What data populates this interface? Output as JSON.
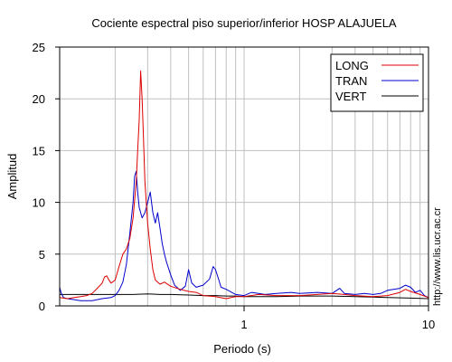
{
  "chart_data": {
    "type": "line",
    "title": "Cociente espectral piso superior/inferior  HOSP ALAJUELA",
    "xlabel": "Periodo (s)",
    "ylabel": "Amplitud",
    "x_scale": "log",
    "xlim": [
      0.1,
      10
    ],
    "ylim": [
      0,
      25
    ],
    "y_ticks": [
      "0",
      "5",
      "10",
      "15",
      "20",
      "25"
    ],
    "x_ticks": [
      {
        "value": 1,
        "label": "1"
      },
      {
        "value": 10,
        "label": "10"
      }
    ],
    "grid": true,
    "legend_position": "top-right",
    "credit": "http://www.lis.ucr.ac.cr",
    "series": [
      {
        "name": "LONG",
        "color": "#dd0000",
        "points": [
          [
            0.1,
            0.8
          ],
          [
            0.11,
            0.7
          ],
          [
            0.12,
            0.8
          ],
          [
            0.13,
            0.9
          ],
          [
            0.14,
            1.0
          ],
          [
            0.15,
            1.2
          ],
          [
            0.16,
            1.7
          ],
          [
            0.17,
            2.2
          ],
          [
            0.175,
            2.8
          ],
          [
            0.18,
            2.9
          ],
          [
            0.185,
            2.5
          ],
          [
            0.19,
            2.2
          ],
          [
            0.2,
            2.5
          ],
          [
            0.21,
            3.8
          ],
          [
            0.22,
            5.0
          ],
          [
            0.23,
            5.5
          ],
          [
            0.24,
            6.5
          ],
          [
            0.25,
            8.5
          ],
          [
            0.26,
            12.0
          ],
          [
            0.265,
            15.0
          ],
          [
            0.27,
            18.0
          ],
          [
            0.275,
            22.7
          ],
          [
            0.28,
            20.0
          ],
          [
            0.285,
            16.0
          ],
          [
            0.29,
            12.0
          ],
          [
            0.3,
            8.0
          ],
          [
            0.31,
            5.5
          ],
          [
            0.32,
            3.5
          ],
          [
            0.33,
            2.5
          ],
          [
            0.35,
            2.1
          ],
          [
            0.37,
            2.3
          ],
          [
            0.4,
            1.9
          ],
          [
            0.45,
            1.6
          ],
          [
            0.5,
            1.4
          ],
          [
            0.55,
            1.3
          ],
          [
            0.6,
            1.0
          ],
          [
            0.7,
            0.9
          ],
          [
            0.8,
            0.7
          ],
          [
            0.9,
            0.9
          ],
          [
            1.0,
            0.9
          ],
          [
            1.2,
            1.1
          ],
          [
            1.5,
            1.0
          ],
          [
            2.0,
            1.0
          ],
          [
            2.5,
            1.1
          ],
          [
            3.0,
            1.2
          ],
          [
            3.5,
            1.1
          ],
          [
            4.0,
            1.0
          ],
          [
            5.0,
            0.9
          ],
          [
            6.0,
            1.0
          ],
          [
            7.0,
            1.3
          ],
          [
            7.5,
            1.6
          ],
          [
            8.0,
            1.4
          ],
          [
            9.0,
            1.1
          ],
          [
            10.0,
            0.8
          ]
        ]
      },
      {
        "name": "TRAN",
        "color": "#0000cc",
        "points": [
          [
            0.1,
            1.8
          ],
          [
            0.102,
            1.2
          ],
          [
            0.105,
            0.8
          ],
          [
            0.11,
            0.7
          ],
          [
            0.12,
            0.6
          ],
          [
            0.13,
            0.5
          ],
          [
            0.15,
            0.5
          ],
          [
            0.17,
            0.7
          ],
          [
            0.19,
            0.8
          ],
          [
            0.2,
            1.0
          ],
          [
            0.21,
            1.5
          ],
          [
            0.22,
            2.3
          ],
          [
            0.23,
            4.0
          ],
          [
            0.24,
            7.0
          ],
          [
            0.25,
            10.0
          ],
          [
            0.255,
            12.5
          ],
          [
            0.26,
            13.0
          ],
          [
            0.265,
            11.0
          ],
          [
            0.27,
            9.5
          ],
          [
            0.28,
            8.5
          ],
          [
            0.29,
            9.0
          ],
          [
            0.3,
            10.0
          ],
          [
            0.31,
            11.0
          ],
          [
            0.32,
            9.0
          ],
          [
            0.33,
            8.0
          ],
          [
            0.34,
            9.0
          ],
          [
            0.35,
            7.5
          ],
          [
            0.36,
            6.0
          ],
          [
            0.37,
            5.0
          ],
          [
            0.38,
            4.2
          ],
          [
            0.4,
            3.0
          ],
          [
            0.42,
            2.0
          ],
          [
            0.45,
            1.5
          ],
          [
            0.48,
            1.9
          ],
          [
            0.5,
            3.5
          ],
          [
            0.52,
            2.2
          ],
          [
            0.55,
            1.8
          ],
          [
            0.6,
            2.0
          ],
          [
            0.65,
            2.6
          ],
          [
            0.68,
            3.8
          ],
          [
            0.7,
            3.5
          ],
          [
            0.73,
            2.5
          ],
          [
            0.75,
            1.8
          ],
          [
            0.8,
            1.6
          ],
          [
            0.9,
            1.1
          ],
          [
            1.0,
            1.0
          ],
          [
            1.1,
            1.3
          ],
          [
            1.3,
            1.1
          ],
          [
            1.5,
            1.2
          ],
          [
            1.8,
            1.3
          ],
          [
            2.0,
            1.2
          ],
          [
            2.5,
            1.3
          ],
          [
            3.0,
            1.2
          ],
          [
            3.3,
            1.7
          ],
          [
            3.5,
            1.2
          ],
          [
            4.0,
            1.1
          ],
          [
            4.5,
            1.2
          ],
          [
            5.0,
            1.1
          ],
          [
            5.5,
            1.2
          ],
          [
            6.0,
            1.5
          ],
          [
            7.0,
            1.7
          ],
          [
            7.5,
            2.0
          ],
          [
            8.0,
            1.8
          ],
          [
            8.5,
            1.3
          ],
          [
            9.0,
            1.5
          ],
          [
            9.5,
            1.0
          ],
          [
            10.0,
            0.8
          ]
        ]
      },
      {
        "name": "VERT",
        "color": "#000000",
        "points": [
          [
            0.1,
            1.1
          ],
          [
            0.15,
            1.1
          ],
          [
            0.2,
            1.1
          ],
          [
            0.25,
            1.1
          ],
          [
            0.3,
            1.15
          ],
          [
            0.35,
            1.1
          ],
          [
            0.4,
            1.1
          ],
          [
            0.5,
            1.05
          ],
          [
            0.6,
            1.0
          ],
          [
            0.7,
            1.0
          ],
          [
            0.8,
            0.95
          ],
          [
            0.9,
            0.95
          ],
          [
            1.0,
            0.9
          ],
          [
            1.5,
            0.9
          ],
          [
            2.0,
            0.95
          ],
          [
            3.0,
            0.95
          ],
          [
            4.0,
            0.9
          ],
          [
            5.0,
            0.85
          ],
          [
            6.0,
            0.8
          ],
          [
            8.0,
            0.75
          ],
          [
            10.0,
            0.7
          ]
        ]
      }
    ]
  }
}
